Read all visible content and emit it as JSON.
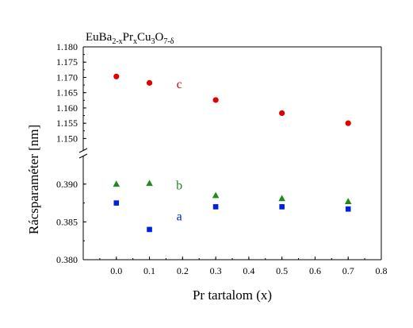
{
  "chart_data": {
    "type": "scatter",
    "title_parts": [
      {
        "t": "EuBa",
        "s": "base"
      },
      {
        "t": "2-x",
        "s": "sub"
      },
      {
        "t": "Pr",
        "s": "base"
      },
      {
        "t": "x",
        "s": "sub"
      },
      {
        "t": "Cu",
        "s": "base"
      },
      {
        "t": "3",
        "s": "sub"
      },
      {
        "t": "O",
        "s": "base"
      },
      {
        "t": "7-δ",
        "s": "sub"
      }
    ],
    "xlabel": "Pr tartalom (x)",
    "ylabel": "Rácsparaméter [nm]",
    "xlim": [
      -0.1,
      0.8
    ],
    "x_ticks": [
      "0.0",
      "0.1",
      "0.2",
      "0.3",
      "0.4",
      "0.5",
      "0.6",
      "0.7",
      "0.8"
    ],
    "y_upper": {
      "range": [
        1.1475,
        1.18
      ],
      "ticks": [
        "1.150",
        "1.155",
        "1.160",
        "1.165",
        "1.170",
        "1.175",
        "1.180"
      ]
    },
    "y_lower": {
      "range": [
        0.38,
        0.3925
      ],
      "ticks": [
        "0.380",
        "0.385",
        "0.390"
      ]
    },
    "axis_break": true,
    "grid": false,
    "series": [
      {
        "label": "c",
        "marker": "circle",
        "color": "#e00000",
        "panel": "upper",
        "x": [
          0.0,
          0.1,
          0.3,
          0.5,
          0.7
        ],
        "y": [
          1.1703,
          1.1682,
          1.1626,
          1.1583,
          1.155
        ]
      },
      {
        "label": "b",
        "marker": "triangle",
        "color": "#1f8a1f",
        "panel": "lower",
        "x": [
          0.0,
          0.1,
          0.3,
          0.5,
          0.7
        ],
        "y": [
          0.39,
          0.3901,
          0.3885,
          0.3881,
          0.3877
        ]
      },
      {
        "label": "a",
        "marker": "square",
        "color": "#0020e0",
        "panel": "lower",
        "x": [
          0.0,
          0.1,
          0.3,
          0.5,
          0.7
        ],
        "y": [
          0.3875,
          0.384,
          0.387,
          0.387,
          0.3867
        ]
      }
    ],
    "annotations": [
      {
        "text": "c",
        "x": 0.19,
        "y": 1.1665,
        "panel": "upper",
        "color": "#e00000"
      },
      {
        "text": "b",
        "x": 0.19,
        "y": 0.3893,
        "panel": "lower",
        "color": "#1f8a1f"
      },
      {
        "text": "a",
        "x": 0.19,
        "y": 0.3852,
        "panel": "lower",
        "color": "#0020e0"
      }
    ]
  }
}
